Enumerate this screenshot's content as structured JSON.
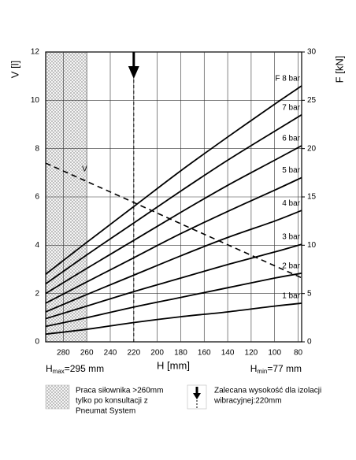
{
  "chart_data": {
    "type": "line",
    "xlabel": "H [mm]",
    "ylabel": "V [l]",
    "y2label": "F [kN]",
    "xlim": [
      295,
      77
    ],
    "xticks": [
      280,
      260,
      240,
      220,
      200,
      180,
      160,
      140,
      120,
      100,
      80
    ],
    "ylim": [
      0,
      12
    ],
    "yticks": [
      0,
      2,
      4,
      6,
      8,
      10,
      12
    ],
    "y2lim": [
      0,
      30
    ],
    "y2ticks": [
      0,
      5,
      10,
      15,
      20,
      25,
      30
    ],
    "grid": true,
    "x": [
      295,
      260,
      220,
      180,
      140,
      100,
      77
    ],
    "series": [
      {
        "name": "F 8 bar",
        "color": "#000000",
        "axis": "y2",
        "values": [
          7,
          10.3,
          14.0,
          17.7,
          21.2,
          24.6,
          26.5
        ]
      },
      {
        "name": "7 bar",
        "color": "#000000",
        "axis": "y2",
        "values": [
          6,
          9.0,
          12.3,
          15.6,
          18.8,
          21.8,
          23.5
        ]
      },
      {
        "name": "6 bar",
        "color": "#000000",
        "axis": "y2",
        "values": [
          5,
          7.6,
          10.5,
          13.4,
          16.2,
          18.8,
          20.3
        ]
      },
      {
        "name": "5 bar",
        "color": "#000000",
        "axis": "y2",
        "values": [
          4,
          6.2,
          8.7,
          11.2,
          13.5,
          15.7,
          17
        ]
      },
      {
        "name": "4 bar",
        "color": "#000000",
        "axis": "y2",
        "values": [
          3.1,
          4.9,
          6.9,
          8.9,
          10.8,
          12.5,
          13.6
        ]
      },
      {
        "name": "3 bar",
        "color": "#000000",
        "axis": "y2",
        "values": [
          2.4,
          3.7,
          5.2,
          6.6,
          8.0,
          9.3,
          10.1
        ]
      },
      {
        "name": "2 bar",
        "color": "#000000",
        "axis": "y2",
        "values": [
          1.6,
          2.5,
          3.6,
          4.6,
          5.6,
          6.6,
          7.1
        ]
      },
      {
        "name": "1 bar",
        "color": "#000000",
        "axis": "y2",
        "values": [
          0.8,
          1.3,
          2.0,
          2.6,
          3.1,
          3.7,
          4.0
        ]
      },
      {
        "name": "V",
        "color": "#000000",
        "axis": "y",
        "line_style": "dashed",
        "values": [
          7.4,
          6.64,
          5.77,
          4.89,
          4.02,
          3.15,
          2.65
        ]
      }
    ],
    "shaded_range": [
      295,
      260
    ],
    "marker_x": 220,
    "hmax": {
      "symbol": "H",
      "sub": "max",
      "text": "=295 mm"
    },
    "hmin": {
      "symbol": "H",
      "sub": "min",
      "text": "=77 mm"
    },
    "notes": {
      "shaded": [
        "Praca siłownika >260mm",
        "tylko po konsultacji z",
        "Pneumat System"
      ],
      "arrow": [
        "Zalecana wysokość dla izolacji",
        "wibracyjnej:220mm"
      ]
    }
  }
}
